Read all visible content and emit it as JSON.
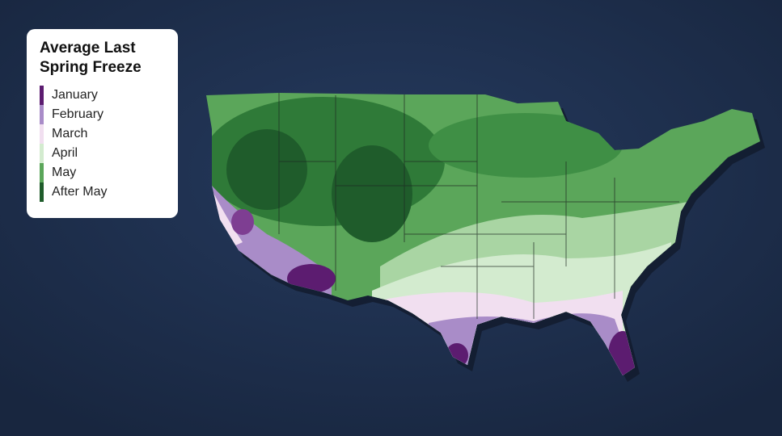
{
  "legend": {
    "title": "Average Last Spring Freeze",
    "items": [
      {
        "label": "January",
        "color": "#5c1c70"
      },
      {
        "label": "February",
        "color": "#a98cc8"
      },
      {
        "label": "March",
        "color": "#f1dff0"
      },
      {
        "label": "April",
        "color": "#d3ebcf"
      },
      {
        "label": "May",
        "color": "#5ba65a"
      },
      {
        "label": "After May",
        "color": "#1f5c2b"
      }
    ]
  }
}
